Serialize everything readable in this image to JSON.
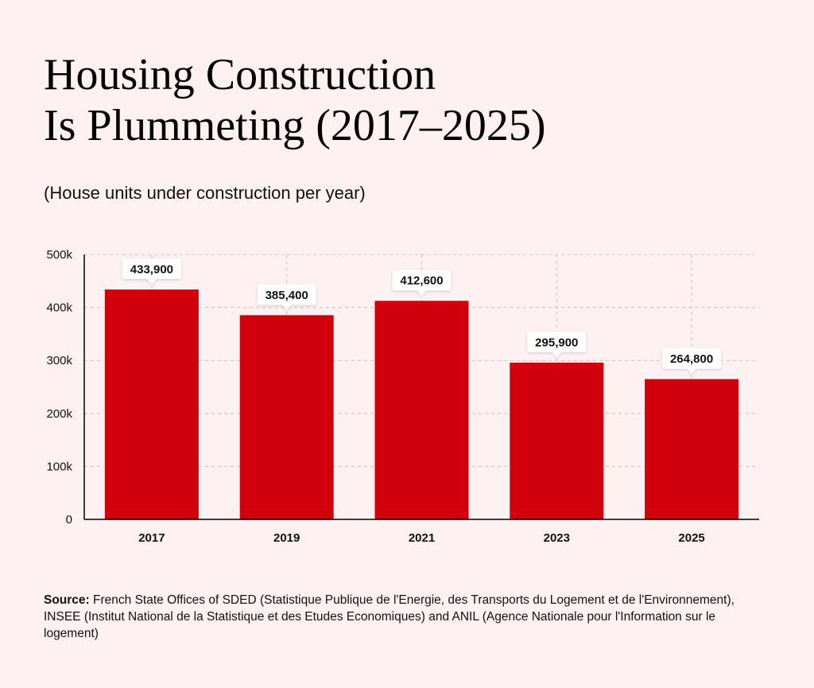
{
  "title_line1": "Housing Construction",
  "title_line2": "Is Plummeting (2017–2025)",
  "subtitle": "(House units under construction per year)",
  "source_label": "Source:",
  "source_text": "French State Offices of SDED (Statistique Publique de l'Energie, des Transports du Logement et de l'Environnement), INSEE (Institut National de la Statistique et des Etudes Economiques) and ANIL (Agence Nationale pour l'Information sur le logement)",
  "colors": {
    "background": "#fdf1f1",
    "bar": "#d1000b",
    "grid": "#c9c2c2",
    "axis": "#000000"
  },
  "chart_data": {
    "type": "bar",
    "categories": [
      "2017",
      "2019",
      "2021",
      "2023",
      "2025"
    ],
    "values": [
      433900,
      385400,
      412600,
      295900,
      264800
    ],
    "data_labels": [
      "433,900",
      "385,400",
      "412,600",
      "295,900",
      "264,800"
    ],
    "title": "",
    "xlabel": "",
    "ylabel": "",
    "ylim": [
      0,
      500000
    ],
    "yticks": [
      0,
      100000,
      200000,
      300000,
      400000,
      500000
    ],
    "ytick_labels": [
      "0",
      "100k",
      "200k",
      "300k",
      "400k",
      "500k"
    ],
    "grid": true,
    "legend": "none"
  }
}
